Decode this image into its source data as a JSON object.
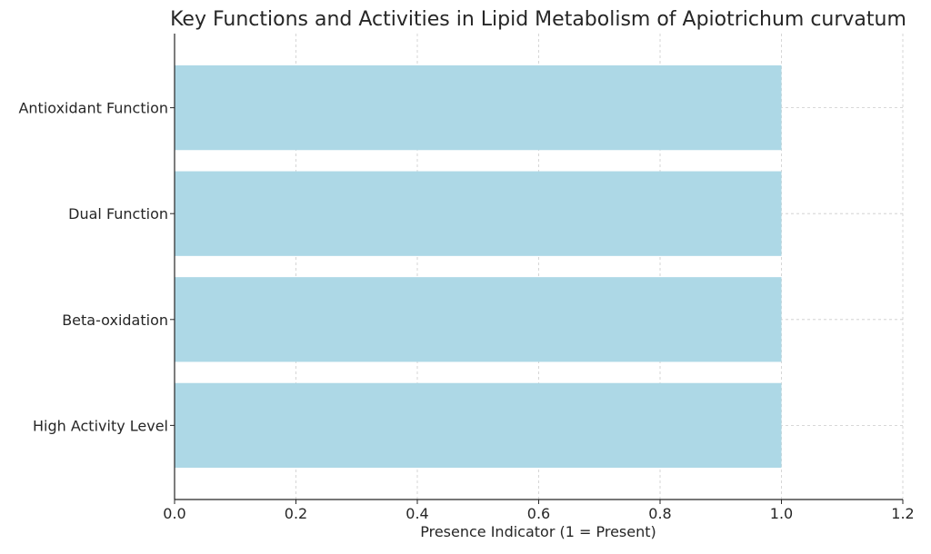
{
  "chart_data": {
    "type": "bar",
    "orientation": "horizontal",
    "title": "Key Functions and Activities in Lipid Metabolism of Apiotrichum curvatum",
    "xlabel": "Presence Indicator (1 = Present)",
    "ylabel": "",
    "categories": [
      "Antioxidant Function",
      "Dual Function",
      "Beta-oxidation",
      "High Activity Level"
    ],
    "values": [
      1,
      1,
      1,
      1
    ],
    "xlim": [
      0,
      1.2
    ],
    "xticks": [
      "0.0",
      "0.2",
      "0.4",
      "0.6",
      "0.8",
      "1.0",
      "1.2"
    ],
    "grid": true,
    "legend": "none",
    "bar_color": "#add8e6",
    "grid_color": "#cccccc",
    "axis_color": "#262626"
  }
}
